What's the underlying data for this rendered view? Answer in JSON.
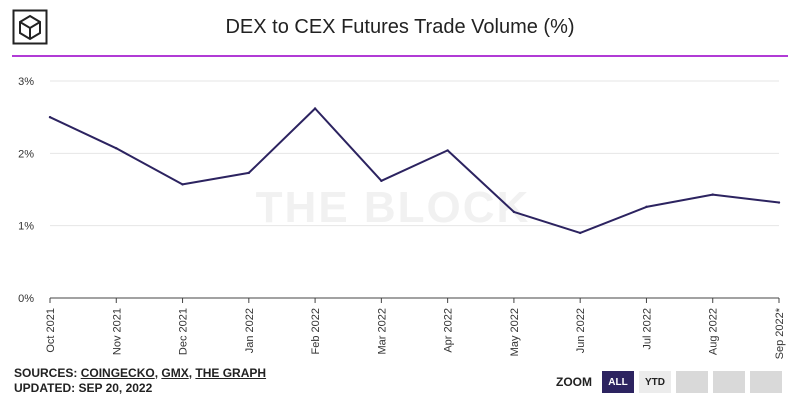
{
  "header": {
    "title": "DEX to CEX Futures Trade Volume (%)",
    "logo_icon": "cube-logo-icon",
    "accent_color": "#b13bd6"
  },
  "watermark": "THE BLOCK",
  "chart_data": {
    "type": "line",
    "title": "DEX to CEX Futures Trade Volume (%)",
    "xlabel": "",
    "ylabel": "",
    "categories": [
      "Oct 2021",
      "Nov 2021",
      "Dec 2021",
      "Jan 2022",
      "Feb 2022",
      "Mar 2022",
      "Apr 2022",
      "May 2022",
      "Jun 2022",
      "Jul 2022",
      "Aug 2022",
      "Sep 2022*"
    ],
    "series": [
      {
        "values": [
          2.5,
          2.07,
          1.57,
          1.73,
          2.62,
          1.62,
          2.04,
          1.19,
          0.9,
          1.26,
          1.43,
          1.32
        ],
        "color": "#2c2360"
      }
    ],
    "ylim": [
      0,
      3
    ],
    "yticks": [
      0,
      1,
      2,
      3
    ],
    "ytick_labels": [
      "0%",
      "1%",
      "2%",
      "3%"
    ],
    "grid": true,
    "legend": "none"
  },
  "footer": {
    "sources_prefix": "SOURCES: ",
    "sources": [
      "COINGECKO",
      "GMX",
      "THE GRAPH"
    ],
    "separator": ", ",
    "updated": "UPDATED: SEP 20, 2022"
  },
  "zoom": {
    "label": "ZOOM",
    "buttons": [
      {
        "label": "ALL",
        "state": "active"
      },
      {
        "label": "YTD",
        "state": "normal"
      },
      {
        "label": "",
        "state": "empty"
      },
      {
        "label": "",
        "state": "empty"
      },
      {
        "label": "",
        "state": "empty"
      }
    ]
  }
}
